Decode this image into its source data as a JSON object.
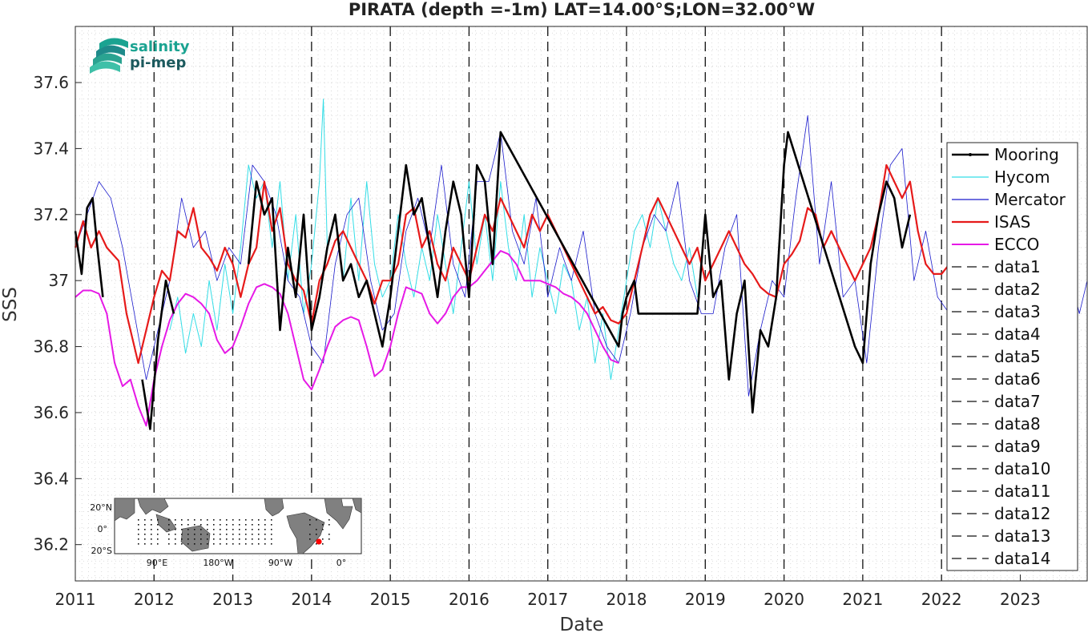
{
  "chart_data": {
    "type": "line",
    "title": "PIRATA (depth =-1m) LAT=14.00°S;LON=32.00°W",
    "xlabel": "Date",
    "ylabel": "SSS",
    "xlim": [
      2011.0,
      2023.85
    ],
    "ylim": [
      36.09,
      37.77
    ],
    "x_ticks": [
      "2011",
      "2012",
      "2013",
      "2014",
      "2015",
      "2016",
      "2017",
      "2018",
      "2019",
      "2020",
      "2021",
      "2022",
      "2023"
    ],
    "y_ticks": [
      "36.2",
      "36.4",
      "36.6",
      "36.8",
      "37",
      "37.2",
      "37.4",
      "37.6"
    ],
    "grid": "dotted minor",
    "legend_position": "right",
    "year_lines": [
      2012,
      2013,
      2014,
      2015,
      2016,
      2017,
      2018,
      2019,
      2020,
      2021,
      2022
    ],
    "series": [
      {
        "name": "Mooring",
        "color": "#000000",
        "width": 2.6,
        "x": [
          2011.0,
          2011.08,
          2011.15,
          2011.22,
          2011.28,
          2011.35,
          2011.45,
          2011.55,
          2011.65,
          2011.75,
          2011.85,
          2011.95,
          2012.05,
          2012.15,
          2012.25,
          2013.1,
          2013.2,
          2013.3,
          2013.4,
          2013.5,
          2013.6,
          2013.7,
          2013.8,
          2013.9,
          2014.0,
          2014.1,
          2014.2,
          2014.3,
          2014.4,
          2014.5,
          2014.6,
          2014.7,
          2014.8,
          2014.9,
          2015.0,
          2015.1,
          2015.2,
          2015.3,
          2015.4,
          2015.5,
          2015.6,
          2015.7,
          2015.8,
          2015.9,
          2016.0,
          2016.1,
          2016.2,
          2016.3,
          2016.4,
          2017.9,
          2017.95,
          2018.0,
          2018.1,
          2018.15,
          2018.9,
          2019.0,
          2019.1,
          2019.2,
          2019.3,
          2019.4,
          2019.5,
          2019.6,
          2019.7,
          2019.8,
          2019.9,
          2020.0,
          2020.05,
          2020.9,
          2021.0,
          2021.1,
          2021.2,
          2021.3,
          2021.4,
          2021.5,
          2021.6
        ],
        "y": [
          37.15,
          37.02,
          37.22,
          37.25,
          37.1,
          36.95,
          null,
          null,
          null,
          null,
          36.7,
          36.55,
          36.82,
          37.0,
          36.9,
          null,
          37.05,
          37.3,
          37.2,
          37.25,
          36.85,
          37.1,
          36.95,
          37.2,
          36.85,
          36.95,
          37.1,
          37.2,
          37.0,
          37.05,
          36.95,
          37.0,
          36.9,
          36.8,
          36.95,
          37.15,
          37.35,
          37.2,
          37.25,
          37.1,
          36.95,
          37.15,
          37.3,
          37.2,
          36.95,
          37.35,
          37.3,
          37.05,
          37.45,
          36.8,
          36.9,
          36.95,
          37.0,
          36.9,
          36.9,
          37.2,
          36.95,
          37.0,
          36.7,
          36.9,
          37.0,
          36.6,
          36.85,
          36.8,
          36.95,
          37.35,
          37.45,
          36.8,
          36.75,
          37.05,
          37.2,
          37.3,
          37.25,
          37.1,
          37.2
        ]
      },
      {
        "name": "Hycom",
        "color": "#33dde6",
        "width": 1.0,
        "x": [
          2012.2,
          2012.3,
          2012.4,
          2012.5,
          2012.6,
          2012.7,
          2012.8,
          2012.9,
          2013.0,
          2013.1,
          2013.2,
          2013.3,
          2013.4,
          2013.5,
          2013.6,
          2013.7,
          2013.8,
          2013.9,
          2014.0,
          2014.1,
          2014.15,
          2014.2,
          2014.3,
          2014.4,
          2014.5,
          2014.6,
          2014.7,
          2014.8,
          2014.9,
          2015.0,
          2015.1,
          2015.2,
          2015.3,
          2015.4,
          2015.5,
          2015.6,
          2015.7,
          2015.8,
          2015.9,
          2016.0,
          2016.1,
          2016.2,
          2016.3,
          2016.4,
          2016.5,
          2016.6,
          2016.7,
          2016.8,
          2016.9,
          2017.0,
          2017.1,
          2017.2,
          2017.3,
          2017.4,
          2017.5,
          2017.6,
          2017.7,
          2017.8,
          2017.9,
          2018.0,
          2018.1,
          2018.2,
          2018.3,
          2018.4,
          2018.5,
          2018.6,
          2018.7,
          2018.8,
          2018.9
        ],
        "y": [
          36.85,
          36.95,
          36.78,
          36.9,
          36.8,
          37.0,
          36.85,
          37.05,
          36.9,
          37.1,
          37.35,
          37.25,
          37.3,
          37.1,
          37.3,
          37.0,
          37.2,
          36.9,
          37.05,
          37.3,
          37.55,
          37.1,
          37.2,
          37.0,
          37.25,
          37.0,
          37.3,
          37.05,
          36.95,
          37.0,
          37.2,
          37.05,
          36.95,
          37.1,
          37.0,
          37.2,
          37.05,
          36.9,
          37.1,
          37.3,
          37.05,
          37.2,
          37.0,
          37.3,
          37.1,
          37.0,
          37.2,
          36.95,
          37.1,
          37.0,
          36.9,
          37.05,
          37.0,
          36.85,
          36.95,
          36.75,
          36.9,
          36.7,
          36.85,
          37.0,
          37.15,
          37.2,
          37.1,
          37.25,
          37.15,
          37.05,
          37.0,
          37.1,
          36.95
        ]
      },
      {
        "name": "Mercator",
        "color": "#1a1acc",
        "width": 0.8,
        "x": [
          2011.0,
          2011.15,
          2011.3,
          2011.45,
          2011.6,
          2011.75,
          2011.9,
          2012.05,
          2012.2,
          2012.35,
          2012.5,
          2012.65,
          2012.8,
          2012.95,
          2013.1,
          2013.25,
          2013.4,
          2013.55,
          2013.7,
          2013.85,
          2014.0,
          2014.15,
          2014.3,
          2014.45,
          2014.6,
          2014.75,
          2014.9,
          2015.05,
          2015.2,
          2015.35,
          2015.5,
          2015.65,
          2015.8,
          2015.95,
          2016.1,
          2016.25,
          2016.4,
          2016.55,
          2016.7,
          2016.85,
          2017.0,
          2017.15,
          2017.3,
          2017.45,
          2017.6,
          2017.75,
          2017.9,
          2018.05,
          2018.2,
          2018.35,
          2018.5,
          2018.65,
          2018.8,
          2018.95,
          2019.1,
          2019.25,
          2019.4,
          2019.55,
          2019.7,
          2019.85,
          2020.0,
          2020.15,
          2020.3,
          2020.45,
          2020.6,
          2020.75,
          2020.9,
          2021.05,
          2021.2,
          2021.35,
          2021.5,
          2021.65,
          2021.8,
          2021.95,
          2022.1,
          2022.25,
          2022.4,
          2022.55,
          2022.7,
          2022.85,
          2023.0,
          2023.15,
          2023.3,
          2023.45,
          2023.6,
          2023.75,
          2023.85
        ],
        "y": [
          37.1,
          37.2,
          37.3,
          37.25,
          37.1,
          36.9,
          36.7,
          36.85,
          37.0,
          37.25,
          37.1,
          37.15,
          37.0,
          37.1,
          37.05,
          37.35,
          37.3,
          37.2,
          37.0,
          36.95,
          36.8,
          36.75,
          37.05,
          37.2,
          37.25,
          37.0,
          36.85,
          36.9,
          37.15,
          37.25,
          37.1,
          37.35,
          37.05,
          36.95,
          37.3,
          37.3,
          37.45,
          37.15,
          37.05,
          37.25,
          36.95,
          37.1,
          37.0,
          37.15,
          36.9,
          36.8,
          36.75,
          36.9,
          37.1,
          37.2,
          37.15,
          37.3,
          37.0,
          36.9,
          36.9,
          37.1,
          37.2,
          36.65,
          36.85,
          37.0,
          36.95,
          37.25,
          37.5,
          37.05,
          37.3,
          36.95,
          37.0,
          36.75,
          37.1,
          37.35,
          37.4,
          37.0,
          37.15,
          36.95,
          36.9,
          37.2,
          37.35,
          37.05,
          37.15,
          36.95,
          37.2,
          37.05,
          37.0,
          37.15,
          37.05,
          36.9,
          37.0
        ]
      },
      {
        "name": "ISAS",
        "color": "#e61a1a",
        "width": 2.2,
        "x": [
          2011.0,
          2011.1,
          2011.2,
          2011.3,
          2011.4,
          2011.55,
          2011.65,
          2011.8,
          2011.9,
          2012.0,
          2012.1,
          2012.2,
          2012.3,
          2012.4,
          2012.5,
          2012.6,
          2012.7,
          2012.8,
          2012.9,
          2013.0,
          2013.1,
          2013.2,
          2013.3,
          2013.4,
          2013.5,
          2013.6,
          2013.7,
          2013.8,
          2013.9,
          2014.0,
          2014.1,
          2014.2,
          2014.3,
          2014.4,
          2014.5,
          2014.6,
          2014.7,
          2014.8,
          2014.9,
          2015.0,
          2015.1,
          2015.2,
          2015.3,
          2015.4,
          2015.5,
          2015.6,
          2015.7,
          2015.8,
          2015.9,
          2016.0,
          2016.1,
          2016.2,
          2016.3,
          2016.4,
          2016.5,
          2016.6,
          2016.7,
          2016.8,
          2016.9,
          2017.0,
          2017.1,
          2017.2,
          2017.3,
          2017.4,
          2017.5,
          2017.6,
          2017.7,
          2017.8,
          2017.9,
          2018.0,
          2018.1,
          2018.2,
          2018.3,
          2018.4,
          2018.5,
          2018.6,
          2018.7,
          2018.8,
          2018.9,
          2019.0,
          2019.1,
          2019.2,
          2019.3,
          2019.4,
          2019.5,
          2019.6,
          2019.7,
          2019.8,
          2019.9,
          2020.0,
          2020.1,
          2020.2,
          2020.3,
          2020.4,
          2020.5,
          2020.6,
          2020.7,
          2020.8,
          2020.9,
          2021.0,
          2021.1,
          2021.2,
          2021.3,
          2021.4,
          2021.5,
          2021.6,
          2021.7,
          2021.8,
          2021.9,
          2022.0,
          2022.1
        ],
        "y": [
          37.1,
          37.18,
          37.1,
          37.15,
          37.1,
          37.06,
          36.9,
          36.75,
          36.85,
          36.95,
          37.03,
          37.0,
          37.15,
          37.13,
          37.22,
          37.1,
          37.07,
          37.03,
          37.1,
          37.05,
          36.95,
          37.05,
          37.1,
          37.3,
          37.15,
          37.22,
          37.05,
          37.0,
          36.97,
          36.87,
          37.0,
          37.05,
          37.12,
          37.15,
          37.1,
          37.05,
          37.0,
          36.93,
          37.0,
          37.0,
          37.05,
          37.2,
          37.22,
          37.1,
          37.15,
          37.05,
          37.0,
          37.1,
          37.05,
          37.0,
          37.1,
          37.2,
          37.15,
          37.25,
          37.2,
          37.15,
          37.1,
          37.2,
          37.15,
          37.2,
          37.15,
          37.1,
          37.05,
          37.0,
          36.95,
          36.9,
          36.92,
          36.88,
          36.87,
          36.9,
          37.0,
          37.1,
          37.2,
          37.25,
          37.2,
          37.15,
          37.1,
          37.05,
          37.1,
          37.0,
          37.05,
          37.1,
          37.15,
          37.1,
          37.05,
          37.02,
          36.98,
          36.96,
          36.95,
          37.05,
          37.08,
          37.12,
          37.22,
          37.2,
          37.1,
          37.15,
          37.1,
          37.05,
          37.0,
          37.05,
          37.1,
          37.2,
          37.35,
          37.3,
          37.25,
          37.3,
          37.15,
          37.05,
          37.02,
          37.02,
          37.05
        ]
      },
      {
        "name": "ECCO",
        "color": "#e619e6",
        "width": 2.0,
        "x": [
          2011.0,
          2011.1,
          2011.2,
          2011.3,
          2011.4,
          2011.5,
          2011.6,
          2011.7,
          2011.8,
          2011.9,
          2012.0,
          2012.1,
          2012.2,
          2012.3,
          2012.4,
          2012.5,
          2012.6,
          2012.7,
          2012.8,
          2012.9,
          2013.0,
          2013.1,
          2013.2,
          2013.3,
          2013.4,
          2013.5,
          2013.6,
          2013.7,
          2013.8,
          2013.9,
          2014.0,
          2014.1,
          2014.2,
          2014.3,
          2014.4,
          2014.5,
          2014.6,
          2014.7,
          2014.8,
          2014.9,
          2015.0,
          2015.1,
          2015.2,
          2015.3,
          2015.4,
          2015.5,
          2015.6,
          2015.7,
          2015.8,
          2015.9,
          2016.0,
          2016.1,
          2016.2,
          2016.3,
          2016.4,
          2016.5,
          2016.6,
          2016.7,
          2016.8,
          2016.9,
          2017.0,
          2017.1,
          2017.2,
          2017.3,
          2017.4,
          2017.5,
          2017.6,
          2017.7,
          2017.8,
          2017.9
        ],
        "y": [
          36.95,
          36.97,
          36.97,
          36.96,
          36.9,
          36.75,
          36.68,
          36.7,
          36.62,
          36.56,
          36.7,
          36.8,
          36.88,
          36.93,
          36.96,
          36.95,
          36.93,
          36.9,
          36.82,
          36.78,
          36.8,
          36.86,
          36.93,
          36.98,
          36.99,
          36.98,
          36.96,
          36.9,
          36.8,
          36.7,
          36.67,
          36.73,
          36.8,
          36.86,
          36.88,
          36.89,
          36.88,
          36.8,
          36.71,
          36.73,
          36.8,
          36.9,
          36.98,
          36.97,
          36.96,
          36.9,
          36.87,
          36.9,
          36.95,
          36.98,
          36.98,
          37.0,
          37.03,
          37.06,
          37.09,
          37.08,
          37.05,
          37.0,
          37.0,
          37.0,
          36.99,
          36.98,
          36.96,
          36.95,
          36.93,
          36.9,
          36.85,
          36.8,
          36.76,
          36.75
        ]
      }
    ],
    "dashed_series_names": [
      "data1",
      "data2",
      "data3",
      "data4",
      "data5",
      "data6",
      "data7",
      "data8",
      "data9",
      "data10",
      "data11",
      "data12",
      "data13",
      "data14"
    ]
  },
  "logo": {
    "line1": "salinity",
    "line2": "pi-mep"
  },
  "inset_map": {
    "lat_labels": [
      "20°N",
      "0°",
      "20°S"
    ],
    "lon_labels": [
      "90°E",
      "180°W",
      "90°W",
      "0°"
    ]
  },
  "colors": {
    "mooring": "#000000",
    "hycom": "#33dde6",
    "mercator": "#1a1acc",
    "isas": "#e61a1a",
    "ecco": "#e619e6",
    "logo_teal": "#1aa391",
    "logo_dark": "#1c5a5e"
  }
}
